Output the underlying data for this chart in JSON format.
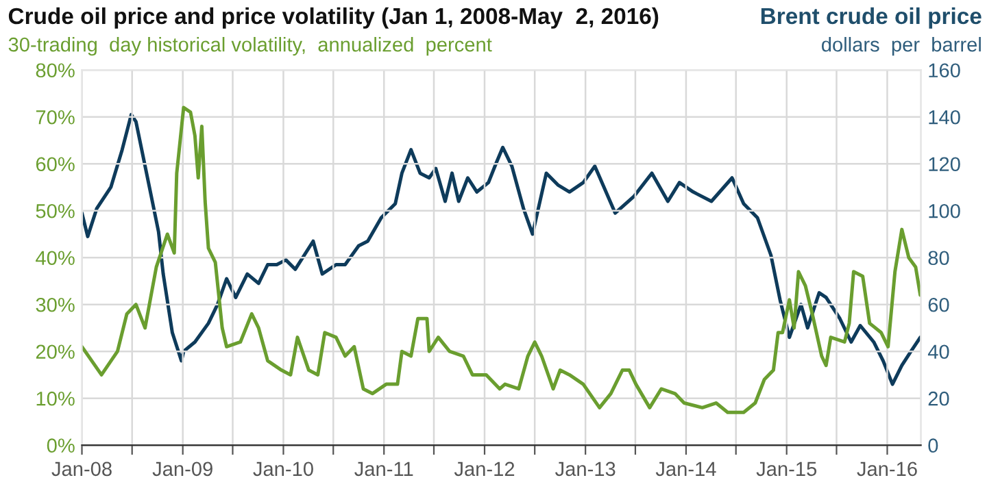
{
  "chart_data": {
    "type": "line",
    "title": "Crude oil price and price volatility (Jan 1, 2008-May  2, 2016)",
    "ylabel": "30-trading  day historical volatility,  annualized  percent",
    "y2label": "Brent crude oil price\ndollars  per  barrel",
    "xlim": [
      "2008-01-01",
      "2016-05-02"
    ],
    "xticks": [
      {
        "value": "2008-01-01",
        "label": "Jan-08"
      },
      {
        "value": "2008-07-01",
        "label": null
      },
      {
        "value": "2009-01-01",
        "label": "Jan-09"
      },
      {
        "value": "2009-07-01",
        "label": null
      },
      {
        "value": "2010-01-01",
        "label": "Jan-10"
      },
      {
        "value": "2010-07-01",
        "label": null
      },
      {
        "value": "2011-01-01",
        "label": "Jan-11"
      },
      {
        "value": "2011-07-01",
        "label": null
      },
      {
        "value": "2012-01-01",
        "label": "Jan-12"
      },
      {
        "value": "2012-07-01",
        "label": null
      },
      {
        "value": "2013-01-01",
        "label": "Jan-13"
      },
      {
        "value": "2013-07-01",
        "label": null
      },
      {
        "value": "2014-01-01",
        "label": "Jan-14"
      },
      {
        "value": "2014-07-01",
        "label": null
      },
      {
        "value": "2015-01-01",
        "label": "Jan-15"
      },
      {
        "value": "2015-07-01",
        "label": null
      },
      {
        "value": "2016-01-01",
        "label": "Jan-16"
      }
    ],
    "ylim": [
      0,
      80
    ],
    "yticks": [
      {
        "value": 0,
        "label": "0%"
      },
      {
        "value": 10,
        "label": "10%"
      },
      {
        "value": 20,
        "label": "20%"
      },
      {
        "value": 30,
        "label": "30%"
      },
      {
        "value": 40,
        "label": "40%"
      },
      {
        "value": 50,
        "label": "50%"
      },
      {
        "value": 60,
        "label": "60%"
      },
      {
        "value": 70,
        "label": "70%"
      },
      {
        "value": 80,
        "label": "80%"
      }
    ],
    "y2lim": [
      0,
      160
    ],
    "y2ticks": [
      0,
      20,
      40,
      60,
      80,
      100,
      120,
      140,
      160
    ],
    "grid": true,
    "legend": false,
    "series": [
      {
        "color": "#6a9e2f",
        "axis": "y",
        "x": [
          "2008-01-01",
          "2008-03-12",
          "2008-05-09",
          "2008-06-12",
          "2008-07-15",
          "2008-08-17",
          "2008-09-27",
          "2008-11-06",
          "2008-12-01",
          "2008-12-10",
          "2009-01-04",
          "2009-01-29",
          "2009-02-14",
          "2009-02-26",
          "2009-03-11",
          "2009-03-23",
          "2009-04-04",
          "2009-04-29",
          "2009-05-24",
          "2009-06-09",
          "2009-07-29",
          "2009-09-08",
          "2009-10-03",
          "2009-11-05",
          "2009-12-25",
          "2010-01-27",
          "2010-02-21",
          "2010-04-03",
          "2010-05-06",
          "2010-05-31",
          "2010-07-11",
          "2010-08-13",
          "2010-09-15",
          "2010-10-18",
          "2010-11-20",
          "2011-01-09",
          "2011-02-19",
          "2011-03-07",
          "2011-04-09",
          "2011-05-04",
          "2011-06-06",
          "2011-06-14",
          "2011-07-17",
          "2011-08-27",
          "2011-10-16",
          "2011-11-18",
          "2012-01-07",
          "2012-02-25",
          "2012-03-15",
          "2012-05-04",
          "2012-06-06",
          "2012-07-01",
          "2012-07-26",
          "2012-09-06",
          "2012-10-01",
          "2012-11-04",
          "2012-12-24",
          "2013-02-21",
          "2013-04-03",
          "2013-05-15",
          "2013-06-09",
          "2013-07-03",
          "2013-08-22",
          "2013-10-03",
          "2013-11-22",
          "2013-12-25",
          "2014-03-01",
          "2014-04-20",
          "2014-06-01",
          "2014-07-29",
          "2014-09-09",
          "2014-10-12",
          "2014-11-14",
          "2014-12-01",
          "2014-12-17",
          "2015-01-11",
          "2015-01-28",
          "2015-02-13",
          "2015-03-10",
          "2015-04-04",
          "2015-05-08",
          "2015-05-24",
          "2015-06-10",
          "2015-07-30",
          "2015-08-16",
          "2015-09-01",
          "2015-10-04",
          "2015-10-29",
          "2015-12-10",
          "2016-01-04",
          "2016-01-29",
          "2016-02-23",
          "2016-03-19",
          "2016-04-13",
          "2016-04-30"
        ],
        "values": [
          21,
          15,
          20,
          28,
          30,
          25,
          38,
          45,
          41,
          58,
          72,
          71,
          66,
          57,
          68,
          52,
          42,
          39,
          25,
          21,
          22,
          28,
          25,
          18,
          16,
          15,
          23,
          16,
          15,
          24,
          23,
          19,
          21,
          12,
          11,
          13,
          13,
          20,
          19,
          27,
          27,
          20,
          23,
          20,
          19,
          15,
          15,
          12,
          13,
          12,
          19,
          22,
          19,
          12,
          16,
          15,
          13,
          8,
          11,
          16,
          16,
          13,
          8,
          12,
          11,
          9,
          8,
          9,
          7,
          7,
          9,
          14,
          16,
          24,
          24,
          31,
          25,
          37,
          34,
          28,
          19,
          17,
          23,
          22,
          26,
          37,
          36,
          26,
          24,
          21,
          37,
          46,
          40,
          38,
          32
        ]
      },
      {
        "color": "#0e3b5b",
        "axis": "y2",
        "x": [
          "2008-01-01",
          "2008-01-22",
          "2008-02-24",
          "2008-04-15",
          "2008-05-26",
          "2008-06-28",
          "2008-07-15",
          "2008-09-02",
          "2008-10-05",
          "2008-10-22",
          "2008-11-24",
          "2008-12-27",
          "2009-01-04",
          "2009-02-14",
          "2009-04-04",
          "2009-05-07",
          "2009-06-09",
          "2009-07-12",
          "2009-08-23",
          "2009-10-03",
          "2009-11-05",
          "2009-12-08",
          "2010-01-10",
          "2010-02-13",
          "2010-04-19",
          "2010-05-22",
          "2010-07-11",
          "2010-08-13",
          "2010-10-01",
          "2010-11-03",
          "2010-12-22",
          "2011-02-11",
          "2011-03-07",
          "2011-04-09",
          "2011-05-12",
          "2011-06-14",
          "2011-07-08",
          "2011-08-11",
          "2011-09-05",
          "2011-09-29",
          "2011-11-01",
          "2011-12-04",
          "2012-01-15",
          "2012-02-11",
          "2012-03-07",
          "2012-04-09",
          "2012-05-21",
          "2012-06-23",
          "2012-08-12",
          "2012-09-23",
          "2012-11-04",
          "2012-12-24",
          "2013-02-04",
          "2013-04-19",
          "2013-06-25",
          "2013-08-30",
          "2013-10-27",
          "2013-12-08",
          "2014-01-27",
          "2014-04-03",
          "2014-06-17",
          "2014-07-29",
          "2014-09-17",
          "2014-11-05",
          "2014-12-08",
          "2015-01-11",
          "2015-02-22",
          "2015-03-18",
          "2015-04-29",
          "2015-05-24",
          "2015-07-13",
          "2015-08-23",
          "2015-09-25",
          "2015-11-13",
          "2015-12-17",
          "2016-01-20",
          "2016-02-23",
          "2016-03-27",
          "2016-04-30"
        ],
        "values": [
          99,
          89,
          101,
          110,
          126,
          141,
          138,
          110,
          91,
          73,
          48,
          36,
          40,
          44,
          52,
          60,
          71,
          63,
          73,
          69,
          77,
          77,
          79,
          75,
          87,
          73,
          77,
          77,
          85,
          87,
          97,
          103,
          116,
          126,
          116,
          114,
          118,
          104,
          116,
          104,
          114,
          108,
          112,
          120,
          127,
          119,
          101,
          90,
          116,
          111,
          108,
          112,
          119,
          99,
          106,
          116,
          104,
          112,
          108,
          104,
          114,
          103,
          97,
          81,
          62,
          46,
          60,
          50,
          65,
          63,
          54,
          44,
          51,
          44,
          36,
          26,
          34,
          40,
          46
        ]
      }
    ]
  }
}
